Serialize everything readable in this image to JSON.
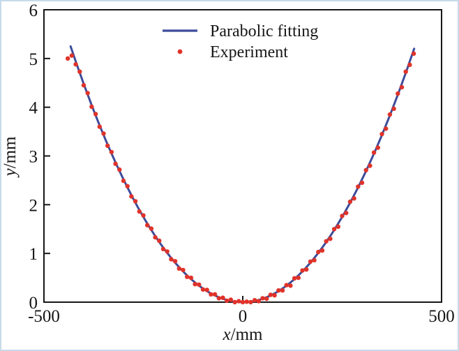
{
  "figure": {
    "background": "#ffffff",
    "border_color": "#c7dbe9",
    "axis_color": "#161616"
  },
  "chart_data": {
    "type": "scatter",
    "title": "",
    "xlabel": "x/mm",
    "ylabel": "y/mm",
    "xlim": [
      -500,
      500
    ],
    "ylim": [
      0,
      6
    ],
    "x_ticks": [
      -500,
      0,
      500
    ],
    "y_ticks": [
      0,
      1,
      2,
      3,
      4,
      5,
      6
    ],
    "grid": false,
    "legend_position": "upper center",
    "series": [
      {
        "name": "Parabolic fitting",
        "type": "line",
        "color": "#3d4c9a",
        "model": "y = a*x^2",
        "a": 2.8e-05,
        "x_range": [
          -433,
          433
        ]
      },
      {
        "name": "Experiment",
        "type": "scatter",
        "color": "#e0332a",
        "points": [
          [
            -440,
            5.0
          ],
          [
            -430,
            5.06
          ],
          [
            -420,
            4.88
          ],
          [
            -410,
            4.73
          ],
          [
            -400,
            4.45
          ],
          [
            -390,
            4.29
          ],
          [
            -380,
            4.01
          ],
          [
            -370,
            3.86
          ],
          [
            -360,
            3.6
          ],
          [
            -350,
            3.46
          ],
          [
            -340,
            3.21
          ],
          [
            -330,
            3.08
          ],
          [
            -320,
            2.84
          ],
          [
            -310,
            2.72
          ],
          [
            -300,
            2.49
          ],
          [
            -290,
            2.38
          ],
          [
            -280,
            2.17
          ],
          [
            -270,
            2.07
          ],
          [
            -260,
            1.86
          ],
          [
            -250,
            1.78
          ],
          [
            -240,
            1.58
          ],
          [
            -230,
            1.51
          ],
          [
            -220,
            1.33
          ],
          [
            -210,
            1.26
          ],
          [
            -200,
            1.09
          ],
          [
            -190,
            1.04
          ],
          [
            -180,
            0.88
          ],
          [
            -170,
            0.84
          ],
          [
            -160,
            0.69
          ],
          [
            -150,
            0.66
          ],
          [
            -140,
            0.52
          ],
          [
            -130,
            0.5
          ],
          [
            -120,
            0.37
          ],
          [
            -110,
            0.36
          ],
          [
            -100,
            0.26
          ],
          [
            -90,
            0.25
          ],
          [
            -80,
            0.16
          ],
          [
            -70,
            0.16
          ],
          [
            -60,
            0.08
          ],
          [
            -50,
            0.09
          ],
          [
            -40,
            0.03
          ],
          [
            -30,
            0.05
          ],
          [
            -20,
            0.0
          ],
          [
            -10,
            0.02
          ],
          [
            0,
            0.0
          ],
          [
            10,
            0.01
          ],
          [
            20,
            0.0
          ],
          [
            30,
            0.04
          ],
          [
            40,
            0.02
          ],
          [
            50,
            0.08
          ],
          [
            60,
            0.07
          ],
          [
            70,
            0.15
          ],
          [
            80,
            0.14
          ],
          [
            90,
            0.24
          ],
          [
            100,
            0.24
          ],
          [
            110,
            0.35
          ],
          [
            120,
            0.34
          ],
          [
            130,
            0.49
          ],
          [
            140,
            0.5
          ],
          [
            150,
            0.65
          ],
          [
            160,
            0.67
          ],
          [
            170,
            0.83
          ],
          [
            180,
            0.86
          ],
          [
            190,
            1.03
          ],
          [
            200,
            1.06
          ],
          [
            210,
            1.25
          ],
          [
            220,
            1.3
          ],
          [
            230,
            1.5
          ],
          [
            240,
            1.55
          ],
          [
            250,
            1.77
          ],
          [
            260,
            1.83
          ],
          [
            270,
            2.06
          ],
          [
            280,
            2.13
          ],
          [
            290,
            2.37
          ],
          [
            300,
            2.45
          ],
          [
            310,
            2.71
          ],
          [
            320,
            2.8
          ],
          [
            330,
            3.07
          ],
          [
            340,
            3.17
          ],
          [
            350,
            3.45
          ],
          [
            360,
            3.56
          ],
          [
            370,
            3.85
          ],
          [
            380,
            3.97
          ],
          [
            390,
            4.28
          ],
          [
            400,
            4.41
          ],
          [
            410,
            4.73
          ],
          [
            420,
            4.87
          ],
          [
            430,
            5.1
          ]
        ]
      }
    ]
  }
}
